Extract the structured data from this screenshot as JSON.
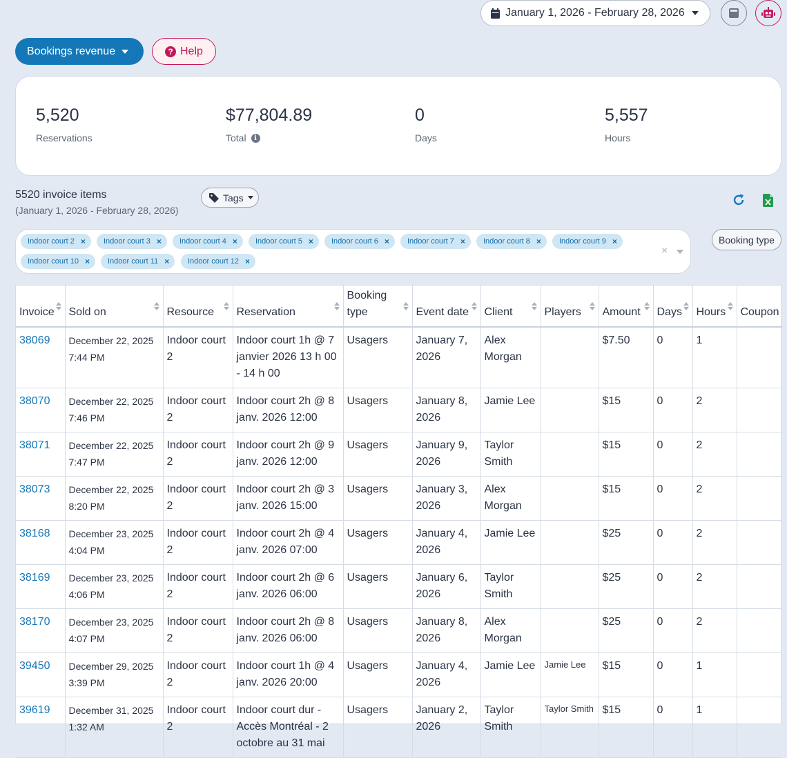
{
  "header": {
    "date_range": "January 1, 2026 - February 28, 2026",
    "report_button": "Bookings revenue",
    "help_button": "Help"
  },
  "stats": [
    {
      "value": "5,520",
      "label": "Reservations"
    },
    {
      "value": "$77,804.89",
      "label": "Total"
    },
    {
      "value": "0",
      "label": "Days"
    },
    {
      "value": "5,557",
      "label": "Hours"
    }
  ],
  "items": {
    "count_text": "5520 invoice items",
    "range_text": "(January 1, 2026 - February 28, 2026)",
    "tags_button": "Tags"
  },
  "filters": {
    "chips": [
      "Indoor court 2",
      "Indoor court 3",
      "Indoor court 4",
      "Indoor court 5",
      "Indoor court 6",
      "Indoor court 7",
      "Indoor court 8",
      "Indoor court 9",
      "Indoor court 10",
      "Indoor court 11",
      "Indoor court 12"
    ],
    "booking_type_button": "Booking type"
  },
  "table": {
    "columns": [
      "Invoice",
      "Sold on",
      "Resource",
      "Reservation",
      "Booking type",
      "Event date",
      "Client",
      "Players",
      "Amount",
      "Days",
      "Hours",
      "Coupon"
    ],
    "rows": [
      {
        "invoice": "38069",
        "sold_on": "December 22, 2025 7:44 PM",
        "resource": "Indoor court 2",
        "reservation": "Indoor court 1h @ 7 janvier 2026 13 h 00 - 14 h 00",
        "booking_type": "Usagers",
        "event_date": "January 7, 2026",
        "client": "Alex Morgan",
        "players": "",
        "amount": "$7.50",
        "days": "0",
        "hours": "1",
        "coupon": ""
      },
      {
        "invoice": "38070",
        "sold_on": "December 22, 2025 7:46 PM",
        "resource": "Indoor court 2",
        "reservation": "Indoor court 2h @ 8 janv. 2026 12:00",
        "booking_type": "Usagers",
        "event_date": "January 8, 2026",
        "client": "Jamie Lee",
        "players": "",
        "amount": "$15",
        "days": "0",
        "hours": "2",
        "coupon": ""
      },
      {
        "invoice": "38071",
        "sold_on": "December 22, 2025 7:47 PM",
        "resource": "Indoor court 2",
        "reservation": "Indoor court 2h @ 9 janv. 2026 12:00",
        "booking_type": "Usagers",
        "event_date": "January 9, 2026",
        "client": "Taylor Smith",
        "players": "",
        "amount": "$15",
        "days": "0",
        "hours": "2",
        "coupon": ""
      },
      {
        "invoice": "38073",
        "sold_on": "December 22, 2025 8:20 PM",
        "resource": "Indoor court 2",
        "reservation": "Indoor court 2h @ 3 janv. 2026 15:00",
        "booking_type": "Usagers",
        "event_date": "January 3, 2026",
        "client": "Alex Morgan",
        "players": "",
        "amount": "$15",
        "days": "0",
        "hours": "2",
        "coupon": ""
      },
      {
        "invoice": "38168",
        "sold_on": "December 23, 2025 4:04 PM",
        "resource": "Indoor court 2",
        "reservation": "Indoor court 2h @ 4 janv. 2026 07:00",
        "booking_type": "Usagers",
        "event_date": "January 4, 2026",
        "client": "Jamie Lee",
        "players": "",
        "amount": "$25",
        "days": "0",
        "hours": "2",
        "coupon": ""
      },
      {
        "invoice": "38169",
        "sold_on": "December 23, 2025 4:06 PM",
        "resource": "Indoor court 2",
        "reservation": "Indoor court 2h @ 6 janv. 2026 06:00",
        "booking_type": "Usagers",
        "event_date": "January 6, 2026",
        "client": "Taylor Smith",
        "players": "",
        "amount": "$25",
        "days": "0",
        "hours": "2",
        "coupon": ""
      },
      {
        "invoice": "38170",
        "sold_on": "December 23, 2025 4:07 PM",
        "resource": "Indoor court 2",
        "reservation": "Indoor court 2h @ 8 janv. 2026 06:00",
        "booking_type": "Usagers",
        "event_date": "January 8, 2026",
        "client": "Alex Morgan",
        "players": "",
        "amount": "$25",
        "days": "0",
        "hours": "2",
        "coupon": ""
      },
      {
        "invoice": "39450",
        "sold_on": "December 29, 2025 3:39 PM",
        "resource": "Indoor court 2",
        "reservation": "Indoor court 1h @ 4 janv. 2026 20:00",
        "booking_type": "Usagers",
        "event_date": "January 4, 2026",
        "client": "Jamie Lee",
        "players": "Jamie Lee",
        "amount": "$15",
        "days": "0",
        "hours": "1",
        "coupon": ""
      },
      {
        "invoice": "39619",
        "sold_on": "December 31, 2025 1:32 AM",
        "resource": "Indoor court 2",
        "reservation": "Indoor court dur - Accès Montréal - 2 octobre au 31 mai",
        "booking_type": "Usagers",
        "event_date": "January 2, 2026",
        "client": "Taylor Smith",
        "players": "Taylor Smith",
        "amount": "$15",
        "days": "0",
        "hours": "1",
        "coupon": ""
      }
    ]
  }
}
